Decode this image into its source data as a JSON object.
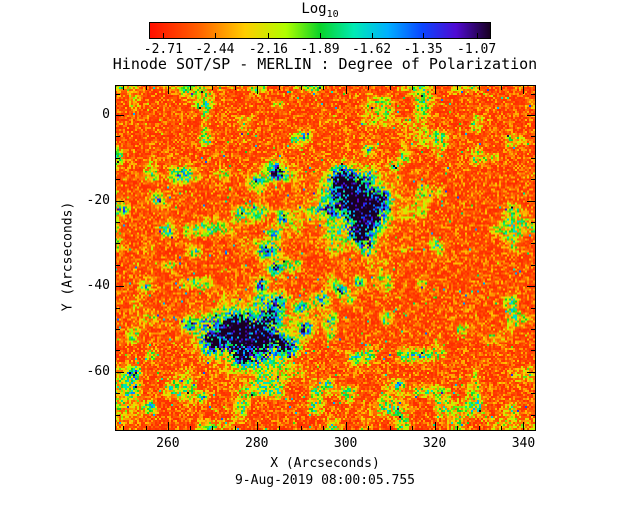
{
  "chart_data": {
    "type": "heatmap",
    "title": "Hinode SOT/SP - MERLIN : Degree of Polarization",
    "timestamp_label": "9-Aug-2019 08:00:05.755",
    "xlabel": "X (Arcseconds)",
    "ylabel": "Y (Arcseconds)",
    "x_ticks": [
      260,
      280,
      300,
      320,
      340
    ],
    "y_ticks": [
      0,
      -20,
      -40,
      -60
    ],
    "x_minor_step": 5,
    "y_minor_step": 5,
    "x_range": [
      248.1,
      342.6
    ],
    "y_range": [
      -73.6,
      7.0
    ],
    "grid": false,
    "colorbar": {
      "label": "Log",
      "label_sub": "10",
      "scale": "log10 degree of polarization",
      "min": -2.78,
      "max": -1.0,
      "tick_values": [
        -2.71,
        -2.44,
        -2.16,
        -1.89,
        -1.62,
        -1.35,
        -1.07
      ],
      "orientation": "horizontal-top"
    },
    "colormap_stops": [
      [
        0.0,
        255,
        15,
        0
      ],
      [
        0.14,
        255,
        95,
        0
      ],
      [
        0.28,
        255,
        205,
        0
      ],
      [
        0.4,
        175,
        255,
        0
      ],
      [
        0.5,
        10,
        210,
        40
      ],
      [
        0.6,
        0,
        235,
        180
      ],
      [
        0.7,
        0,
        175,
        255
      ],
      [
        0.8,
        10,
        70,
        255
      ],
      [
        0.9,
        80,
        10,
        210
      ],
      [
        1.0,
        25,
        0,
        35
      ]
    ],
    "background_log10_level": -2.65,
    "description": "Quiet-Sun polarization map: red/orange granular background (log10 DoP ~ -2.7) with speckled yellow-green network lanes, and strong blue/black plage patches centered near (302,-20) and (278,-52) arcsec connected by a green/cyan chain around x=282-290, y=-24 to -45.",
    "features_note": "Localized high-polarization patches; x,y,r in arcseconds, peak_log10 is approximate peak log10 degree of polarization.",
    "features": [
      {
        "x": 302,
        "y": -19,
        "r": 4.5,
        "peak_log10": -1.15
      },
      {
        "x": 305,
        "y": -24,
        "r": 3.5,
        "peak_log10": -1.2
      },
      {
        "x": 299,
        "y": -15,
        "r": 3.0,
        "peak_log10": -1.5
      },
      {
        "x": 308,
        "y": -20,
        "r": 2.5,
        "peak_log10": -1.6
      },
      {
        "x": 303,
        "y": -28,
        "r": 2.5,
        "peak_log10": -1.55
      },
      {
        "x": 296,
        "y": -22,
        "r": 2.0,
        "peak_log10": -1.8
      },
      {
        "x": 302,
        "y": -21,
        "r": 8.0,
        "peak_log10": -2.1
      },
      {
        "x": 284,
        "y": -13,
        "r": 2.5,
        "peak_log10": -1.8
      },
      {
        "x": 280,
        "y": -16,
        "r": 2.0,
        "peak_log10": -1.9
      },
      {
        "x": 286,
        "y": -24,
        "r": 1.8,
        "peak_log10": -1.85
      },
      {
        "x": 284,
        "y": -28,
        "r": 1.8,
        "peak_log10": -1.8
      },
      {
        "x": 282,
        "y": -32,
        "r": 1.8,
        "peak_log10": -1.85
      },
      {
        "x": 284,
        "y": -36,
        "r": 1.8,
        "peak_log10": -1.9
      },
      {
        "x": 281,
        "y": -40,
        "r": 1.8,
        "peak_log10": -1.85
      },
      {
        "x": 285,
        "y": -43,
        "r": 1.8,
        "peak_log10": -1.9
      },
      {
        "x": 290,
        "y": -45,
        "r": 1.8,
        "peak_log10": -1.95
      },
      {
        "x": 295,
        "y": -43,
        "r": 1.5,
        "peak_log10": -1.9
      },
      {
        "x": 299,
        "y": -41,
        "r": 1.5,
        "peak_log10": -1.85
      },
      {
        "x": 303,
        "y": -39,
        "r": 1.5,
        "peak_log10": -1.95
      },
      {
        "x": 262,
        "y": -14,
        "r": 2.0,
        "peak_log10": -2.0
      },
      {
        "x": 258,
        "y": -20,
        "r": 1.8,
        "peak_log10": -2.05
      },
      {
        "x": 260,
        "y": -27,
        "r": 1.8,
        "peak_log10": -2.05
      },
      {
        "x": 266,
        "y": -32,
        "r": 1.5,
        "peak_log10": -2.1
      },
      {
        "x": 275,
        "y": -50,
        "r": 4.0,
        "peak_log10": -1.1
      },
      {
        "x": 281,
        "y": -52,
        "r": 3.5,
        "peak_log10": -1.15
      },
      {
        "x": 270,
        "y": -53,
        "r": 3.0,
        "peak_log10": -1.3
      },
      {
        "x": 287,
        "y": -54,
        "r": 2.5,
        "peak_log10": -1.4
      },
      {
        "x": 277,
        "y": -56,
        "r": 2.5,
        "peak_log10": -1.4
      },
      {
        "x": 265,
        "y": -49,
        "r": 2.0,
        "peak_log10": -1.7
      },
      {
        "x": 291,
        "y": -50,
        "r": 2.0,
        "peak_log10": -1.7
      },
      {
        "x": 283,
        "y": -47,
        "r": 2.0,
        "peak_log10": -1.5
      },
      {
        "x": 278,
        "y": -52,
        "r": 8.0,
        "peak_log10": -2.05
      },
      {
        "x": 302,
        "y": -57,
        "r": 1.5,
        "peak_log10": -1.95
      },
      {
        "x": 312,
        "y": -63,
        "r": 1.5,
        "peak_log10": -2.1
      },
      {
        "x": 291,
        "y": -5,
        "r": 1.5,
        "peak_log10": -2.1
      },
      {
        "x": 311,
        "y": -12,
        "r": 1.3,
        "peak_log10": -2.15
      },
      {
        "x": 320,
        "y": -30,
        "r": 1.2,
        "peak_log10": -2.15
      },
      {
        "x": 326,
        "y": -50,
        "r": 1.3,
        "peak_log10": -2.15
      },
      {
        "x": 252,
        "y": -60,
        "r": 1.5,
        "peak_log10": -2.1
      },
      {
        "x": 256,
        "y": -68,
        "r": 1.3,
        "peak_log10": -2.15
      },
      {
        "x": 268,
        "y": -66,
        "r": 1.4,
        "peak_log10": -2.1
      },
      {
        "x": 255,
        "y": -40,
        "r": 1.5,
        "peak_log10": -2.1
      },
      {
        "x": 250,
        "y": -22,
        "r": 1.4,
        "peak_log10": -2.1
      },
      {
        "x": 296,
        "y": -63,
        "r": 1.5,
        "peak_log10": -2.05
      },
      {
        "x": 305,
        "y": -8,
        "r": 1.4,
        "peak_log10": -2.1
      }
    ]
  }
}
